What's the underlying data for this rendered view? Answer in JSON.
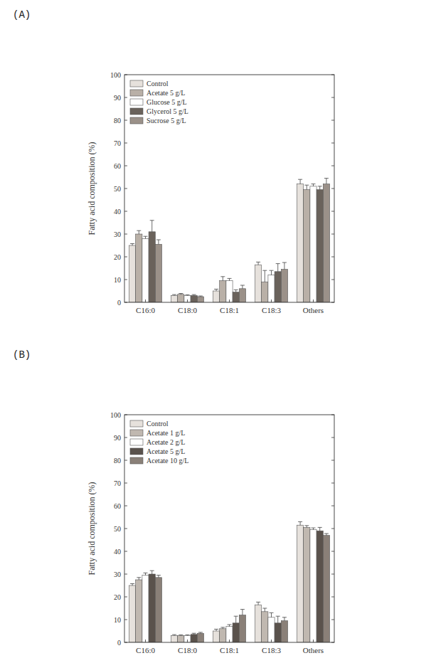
{
  "chart_data": [
    {
      "type": "bar",
      "title": "(A)",
      "y_label": "Fatty acid composition (%)",
      "categories": [
        "C16:0",
        "C18:0",
        "C18:1",
        "C18:3",
        "Others"
      ],
      "series": [
        {
          "name": "Control",
          "color": "#e6e1dc",
          "values": [
            25,
            3,
            5,
            16.5,
            52
          ],
          "errors": [
            0.8,
            0.4,
            0.8,
            1.2,
            2
          ]
        },
        {
          "name": "Acetate 5 g/L",
          "color": "#b9b0a7",
          "values": [
            30,
            3.5,
            9.5,
            9,
            49.5
          ],
          "errors": [
            1.5,
            0.4,
            1.8,
            5,
            2
          ]
        },
        {
          "name": "Glucose 5 g/L",
          "color": "#ffffff",
          "values": [
            28,
            3,
            9.5,
            12,
            51
          ],
          "errors": [
            1,
            0.3,
            1,
            2,
            1
          ]
        },
        {
          "name": "Glycerol 5 g/L",
          "color": "#6a625b",
          "values": [
            31,
            3,
            4.5,
            13.5,
            49.5
          ],
          "errors": [
            5,
            0.4,
            1,
            3.5,
            1.5
          ]
        },
        {
          "name": "Sucrose 5 g/L",
          "color": "#9b9189",
          "values": [
            25.5,
            2.5,
            6,
            14.5,
            52
          ],
          "errors": [
            2,
            0.3,
            1.5,
            3,
            2.5
          ]
        }
      ],
      "ylim": [
        0,
        100
      ],
      "yticks": [
        0,
        10,
        20,
        30,
        40,
        50,
        60,
        70,
        80,
        90,
        100
      ],
      "legend": "upper left",
      "grid": false
    },
    {
      "type": "bar",
      "title": "(B)",
      "y_label": "Fatty acid composition (%)",
      "categories": [
        "C16:0",
        "C18:0",
        "C18:1",
        "C18:3",
        "Others"
      ],
      "series": [
        {
          "name": "Control",
          "color": "#e6e1dc",
          "values": [
            25,
            3,
            5,
            16.5,
            51.5
          ],
          "errors": [
            0.8,
            0.4,
            0.8,
            1.2,
            1.5
          ]
        },
        {
          "name": "Acetate 1 g/L",
          "color": "#c0b8b0",
          "values": [
            27.5,
            3,
            6,
            13.5,
            50.5
          ],
          "errors": [
            1,
            0.3,
            0.6,
            1.5,
            0.8
          ]
        },
        {
          "name": "Acetate 2 g/L",
          "color": "#ffffff",
          "values": [
            29.5,
            3,
            7,
            11,
            49.5
          ],
          "errors": [
            1,
            0.3,
            0.8,
            2,
            0.8
          ]
        },
        {
          "name": "Acetate 5 g/L",
          "color": "#5a524c",
          "values": [
            30,
            3.5,
            8.5,
            8.5,
            49
          ],
          "errors": [
            1.5,
            0.5,
            3,
            3,
            1.5
          ]
        },
        {
          "name": "Acetate 10 g/L",
          "color": "#8a8078",
          "values": [
            28.5,
            4,
            12,
            9.5,
            47
          ],
          "errors": [
            1,
            0.4,
            2.5,
            1.5,
            0.8
          ]
        }
      ],
      "ylim": [
        0,
        100
      ],
      "yticks": [
        0,
        10,
        20,
        30,
        40,
        50,
        60,
        70,
        80,
        90,
        100
      ],
      "legend": "upper left",
      "grid": false
    }
  ]
}
